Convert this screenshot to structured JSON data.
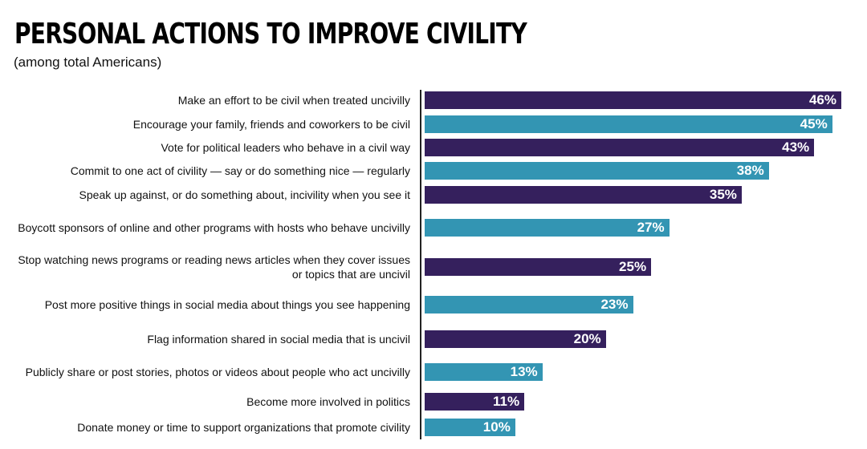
{
  "chart_data": {
    "type": "bar",
    "orientation": "horizontal",
    "title": "PERSONAL ACTIONS TO IMPROVE CIVILITY",
    "subtitle": "(among total Americans)",
    "xlim": [
      0,
      46
    ],
    "grid": false,
    "colors": {
      "primary": "#35205d",
      "secondary": "#3395b3"
    },
    "categories": [
      "Make an effort to be civil when treated uncivilly",
      "Encourage your family, friends and coworkers to be civil",
      "Vote for political leaders who behave in a civil way",
      "Commit to one act of civility — say or do something nice — regularly",
      "Speak up against, or do something about, incivility when you see it",
      "Boycott sponsors of online and other programs with hosts who behave uncivilly",
      "Stop watching news programs or reading news articles when they cover issues or topics that are uncivil",
      "Post more positive things in social media about things you see happening",
      "Flag information shared in social media that is uncivil",
      "Publicly share or post stories, photos or videos about people who act uncivilly",
      "Become more involved in politics",
      "Donate money or time to support organizations that promote civility"
    ],
    "values": [
      46,
      45,
      43,
      38,
      35,
      27,
      25,
      23,
      20,
      13,
      11,
      10
    ],
    "data_labels": [
      "46%",
      "45%",
      "43%",
      "38%",
      "35%",
      "27%",
      "25%",
      "23%",
      "20%",
      "13%",
      "11%",
      "10%"
    ]
  }
}
